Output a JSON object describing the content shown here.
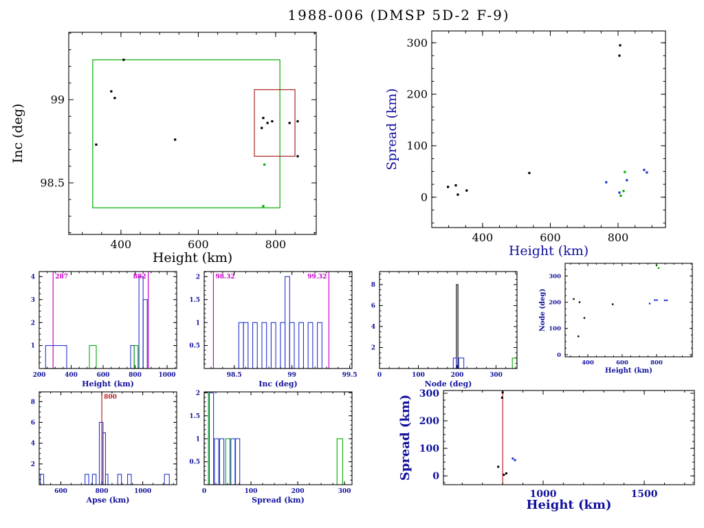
{
  "title": "1988-006 (DMSP 5D-2 F-9)",
  "colors": {
    "axis": "#000000",
    "blue": "#2233cc",
    "green": "#00aa00",
    "magenta": "#cc00cc",
    "red": "#bb2222",
    "navy": "#10109c",
    "black": "#000000"
  },
  "chart_data": [
    {
      "id": "inc-vs-height",
      "type": "scatter",
      "xlabel": "Height (km)",
      "ylabel": "Inc (deg)",
      "xlim": [
        265,
        905
      ],
      "ylim": [
        98.19,
        99.405
      ],
      "xticks": [
        {
          "v": 400,
          "l": "400"
        },
        {
          "v": 600,
          "l": "600"
        },
        {
          "v": 800,
          "l": "800"
        }
      ],
      "yticks": [
        {
          "v": 98.5,
          "l": "98.5"
        },
        {
          "v": 99,
          "l": "99"
        }
      ],
      "label_color": "#000000",
      "tick_color": "#000000",
      "rects": [
        {
          "x0": 327,
          "y0": 98.35,
          "x1": 811,
          "y1": 99.24,
          "color": "#00aa00",
          "name": "green-bound-box"
        },
        {
          "x0": 745,
          "y0": 98.66,
          "x1": 850,
          "y1": 99.06,
          "color": "#aa2222",
          "name": "red-zoom-box"
        }
      ],
      "series": [
        {
          "name": "objects-black",
          "color": "#000000",
          "points": [
            [
              407,
              99.24
            ],
            [
              375,
              99.05
            ],
            [
              384,
              99.01
            ],
            [
              336,
              98.73
            ],
            [
              540,
              98.76
            ],
            [
              768,
              98.89
            ],
            [
              779,
              98.86
            ],
            [
              764,
              98.83
            ],
            [
              791,
              98.87
            ],
            [
              836,
              98.86
            ],
            [
              857,
              98.87
            ],
            [
              857,
              98.66
            ]
          ]
        },
        {
          "name": "objects-green",
          "color": "#00aa00",
          "points": [
            [
              771,
              98.61
            ],
            [
              768,
              98.36
            ]
          ]
        }
      ]
    },
    {
      "id": "spread-vs-height",
      "type": "scatter",
      "xlabel": "Height (km)",
      "ylabel": "Spread (km)",
      "xlim": [
        250,
        940
      ],
      "ylim": [
        -59,
        323
      ],
      "xticks": [
        {
          "v": 400,
          "l": "400"
        },
        {
          "v": 600,
          "l": "600"
        },
        {
          "v": 800,
          "l": "800"
        }
      ],
      "yticks": [
        {
          "v": 0,
          "l": "0"
        },
        {
          "v": 100,
          "l": "100"
        },
        {
          "v": 200,
          "l": "200"
        },
        {
          "v": 300,
          "l": "300"
        }
      ],
      "label_color": "#10109c",
      "tick_color": "#000000",
      "series": [
        {
          "name": "objects-black",
          "color": "#000000",
          "points": [
            [
              806,
              295
            ],
            [
              804,
              275
            ],
            [
              538,
              47
            ],
            [
              298,
              20
            ],
            [
              321,
              23
            ],
            [
              327,
              5
            ],
            [
              353,
              13
            ]
          ]
        },
        {
          "name": "objects-blue",
          "color": "#2233cc",
          "points": [
            [
              765,
              29
            ],
            [
              826,
              33
            ],
            [
              877,
              53
            ],
            [
              885,
              48
            ],
            [
              804,
              9
            ]
          ]
        },
        {
          "name": "objects-green",
          "color": "#00aa00",
          "points": [
            [
              820,
              49
            ],
            [
              816,
              12
            ],
            [
              808,
              3
            ]
          ]
        }
      ]
    },
    {
      "id": "hist-height",
      "type": "bar",
      "xlabel": "Height (km)",
      "ylabel": "",
      "xlim": [
        200,
        1060
      ],
      "ylim": [
        0,
        4.22
      ],
      "xticks": [
        {
          "v": 200,
          "l": "200"
        },
        {
          "v": 400,
          "l": "400"
        },
        {
          "v": 600,
          "l": "600"
        },
        {
          "v": 800,
          "l": "800"
        },
        {
          "v": 1000,
          "l": "1000"
        }
      ],
      "yticks": [
        {
          "v": 1,
          "l": "1"
        },
        {
          "v": 2,
          "l": "2"
        },
        {
          "v": 3,
          "l": "3"
        },
        {
          "v": 4,
          "l": "4"
        }
      ],
      "label_color": "#10109c",
      "tick_color": "#10109c",
      "bins": [
        {
          "x0": 240,
          "x1": 372,
          "h": 1,
          "c": "#2233cc"
        },
        {
          "x0": 514,
          "x1": 557,
          "h": 1,
          "c": "#00aa00"
        },
        {
          "x0": 772,
          "x1": 794,
          "h": 1,
          "c": "#2233cc"
        },
        {
          "x0": 794,
          "x1": 818,
          "h": 1,
          "c": "#00aa00"
        },
        {
          "x0": 824,
          "x1": 850,
          "h": 4,
          "c": "#2233cc"
        },
        {
          "x0": 850,
          "x1": 876,
          "h": 3,
          "c": "#2233cc"
        }
      ],
      "vlines": [
        {
          "x": 287,
          "label": "287",
          "side": "right",
          "color": "#cc00cc"
        },
        {
          "x": 882,
          "label": "882",
          "side": "left",
          "color": "#cc00cc"
        }
      ]
    },
    {
      "id": "hist-inc",
      "type": "bar",
      "xlabel": "Inc (deg)",
      "ylabel": "",
      "xlim": [
        98.24,
        99.52
      ],
      "ylim": [
        0,
        2.11
      ],
      "xticks": [
        {
          "v": 98.5,
          "l": "98.5"
        },
        {
          "v": 99,
          "l": "99"
        },
        {
          "v": 99.5,
          "l": "99.5"
        }
      ],
      "yticks": [
        {
          "v": 0.5,
          "l": "0.5"
        },
        {
          "v": 1,
          "l": "1"
        },
        {
          "v": 1.5,
          "l": "1.5"
        },
        {
          "v": 2,
          "l": "2"
        }
      ],
      "label_color": "#10109c",
      "tick_color": "#10109c",
      "bins": [
        {
          "x0": 98.54,
          "x1": 98.58,
          "h": 1,
          "c": "#2233cc"
        },
        {
          "x0": 98.58,
          "x1": 98.62,
          "h": 1,
          "c": "#2233cc"
        },
        {
          "x0": 98.66,
          "x1": 98.7,
          "h": 1,
          "c": "#2233cc"
        },
        {
          "x0": 98.74,
          "x1": 98.78,
          "h": 1,
          "c": "#2233cc"
        },
        {
          "x0": 98.82,
          "x1": 98.86,
          "h": 1,
          "c": "#2233cc"
        },
        {
          "x0": 98.9,
          "x1": 98.94,
          "h": 1,
          "c": "#2233cc"
        },
        {
          "x0": 98.94,
          "x1": 98.98,
          "h": 2,
          "c": "#2233cc"
        },
        {
          "x0": 98.98,
          "x1": 99.02,
          "h": 1,
          "c": "#2233cc"
        },
        {
          "x0": 99.06,
          "x1": 99.1,
          "h": 1,
          "c": "#2233cc"
        },
        {
          "x0": 99.14,
          "x1": 99.18,
          "h": 1,
          "c": "#2233cc"
        },
        {
          "x0": 99.22,
          "x1": 99.26,
          "h": 1,
          "c": "#2233cc"
        }
      ],
      "vlines": [
        {
          "x": 98.32,
          "label": "98.32",
          "side": "right",
          "color": "#cc00cc"
        },
        {
          "x": 99.32,
          "label": "99.32",
          "side": "left",
          "color": "#cc00cc"
        }
      ]
    },
    {
      "id": "hist-node",
      "type": "bar",
      "xlabel": "Node (deg)",
      "ylabel": "",
      "xlim": [
        0,
        354
      ],
      "ylim": [
        0,
        9.24
      ],
      "xticks": [
        {
          "v": 0,
          "l": "0"
        },
        {
          "v": 100,
          "l": "100"
        },
        {
          "v": 200,
          "l": "200"
        },
        {
          "v": 300,
          "l": "300"
        }
      ],
      "yticks": [
        {
          "v": 2,
          "l": "2"
        },
        {
          "v": 4,
          "l": "4"
        },
        {
          "v": 6,
          "l": "6"
        },
        {
          "v": 8,
          "l": "8"
        }
      ],
      "label_color": "#10109c",
      "tick_color": "#10109c",
      "bins": [
        {
          "x0": 198,
          "x1": 202,
          "h": 8,
          "c": "#000000"
        },
        {
          "x0": 190,
          "x1": 198,
          "h": 1,
          "c": "#2233cc"
        },
        {
          "x0": 204,
          "x1": 217,
          "h": 1,
          "c": "#2233cc"
        },
        {
          "x0": 342,
          "x1": 354,
          "h": 1,
          "c": "#00aa00"
        }
      ],
      "vlines": []
    },
    {
      "id": "node-vs-height",
      "type": "scatter",
      "xlabel": "Height (km)",
      "ylabel": "Node (deg)",
      "xlim": [
        268,
        1008
      ],
      "ylim": [
        -8,
        348
      ],
      "xticks": [
        {
          "v": 400,
          "l": "400"
        },
        {
          "v": 600,
          "l": "600"
        },
        {
          "v": 800,
          "l": "800"
        }
      ],
      "yticks": [
        {
          "v": 0,
          "l": "0"
        },
        {
          "v": 100,
          "l": "100"
        },
        {
          "v": 200,
          "l": "200"
        },
        {
          "v": 300,
          "l": "300"
        }
      ],
      "label_color": "#10109c",
      "tick_color": "#10109c",
      "series": [
        {
          "name": "objects-black",
          "color": "#000000",
          "points": [
            [
              318,
              212
            ],
            [
              352,
              200
            ],
            [
              380,
              140
            ],
            [
              345,
              70
            ],
            [
              545,
              192
            ]
          ]
        },
        {
          "name": "objects-blue",
          "color": "#2233cc",
          "points": [
            [
              760,
              195
            ],
            [
              790,
              208
            ],
            [
              802,
              208
            ],
            [
              848,
              207
            ],
            [
              860,
              207
            ]
          ]
        },
        {
          "name": "objects-green",
          "color": "#00aa00",
          "points": [
            [
              800,
              340
            ],
            [
              812,
              330
            ]
          ]
        }
      ]
    },
    {
      "id": "hist-apse",
      "type": "bar",
      "xlabel": "Apse (km)",
      "ylabel": "",
      "xlim": [
        494,
        1166
      ],
      "ylim": [
        0,
        8.94
      ],
      "xticks": [
        {
          "v": 600,
          "l": "600"
        },
        {
          "v": 800,
          "l": "800"
        },
        {
          "v": 1000,
          "l": "1000"
        }
      ],
      "yticks": [
        {
          "v": 2,
          "l": "2"
        },
        {
          "v": 4,
          "l": "4"
        },
        {
          "v": 6,
          "l": "6"
        },
        {
          "v": 8,
          "l": "8"
        }
      ],
      "label_color": "#10109c",
      "tick_color": "#10109c",
      "bins": [
        {
          "x0": 500,
          "x1": 516,
          "h": 1,
          "c": "#2233cc"
        },
        {
          "x0": 718,
          "x1": 736,
          "h": 1,
          "c": "#2233cc"
        },
        {
          "x0": 754,
          "x1": 772,
          "h": 1,
          "c": "#2233cc"
        },
        {
          "x0": 788,
          "x1": 806,
          "h": 6,
          "c": "#2233cc"
        },
        {
          "x0": 806,
          "x1": 818,
          "h": 5,
          "c": "#2233cc"
        },
        {
          "x0": 818,
          "x1": 830,
          "h": 1,
          "c": "#2233cc"
        },
        {
          "x0": 878,
          "x1": 896,
          "h": 1,
          "c": "#2233cc"
        },
        {
          "x0": 926,
          "x1": 944,
          "h": 1,
          "c": "#2233cc"
        },
        {
          "x0": 1106,
          "x1": 1130,
          "h": 1,
          "c": "#2233cc"
        }
      ],
      "vlines": [
        {
          "x": 800,
          "label": "800",
          "side": "right",
          "color": "#bb2222"
        }
      ]
    },
    {
      "id": "hist-spread",
      "type": "bar",
      "xlabel": "Spread (km)",
      "ylabel": "",
      "xlim": [
        0,
        316
      ],
      "ylim": [
        0,
        2.02
      ],
      "xticks": [
        {
          "v": 0,
          "l": "0"
        },
        {
          "v": 100,
          "l": "100"
        },
        {
          "v": 200,
          "l": "200"
        },
        {
          "v": 300,
          "l": "300"
        }
      ],
      "yticks": [
        {
          "v": 0.5,
          "l": "0.5"
        },
        {
          "v": 1,
          "l": "1"
        },
        {
          "v": 1.5,
          "l": "1.5"
        },
        {
          "v": 2,
          "l": "2"
        }
      ],
      "label_color": "#10109c",
      "tick_color": "#10109c",
      "bins": [
        {
          "x0": 0,
          "x1": 9,
          "h": 2,
          "c": "#00aa00"
        },
        {
          "x0": 11,
          "x1": 20,
          "h": 2,
          "c": "#2233cc"
        },
        {
          "x0": 22,
          "x1": 31,
          "h": 1,
          "c": "#2233cc"
        },
        {
          "x0": 33,
          "x1": 42,
          "h": 1,
          "c": "#2233cc"
        },
        {
          "x0": 46,
          "x1": 55,
          "h": 1,
          "c": "#00aa00"
        },
        {
          "x0": 57,
          "x1": 66,
          "h": 1,
          "c": "#2233cc"
        },
        {
          "x0": 67,
          "x1": 76,
          "h": 1,
          "c": "#2233cc"
        },
        {
          "x0": 284,
          "x1": 296,
          "h": 1,
          "c": "#00aa00"
        }
      ],
      "vlines": []
    },
    {
      "id": "spread-vs-height-zoom",
      "type": "scatter",
      "xlabel": "Height (km)",
      "ylabel": "Spread (km)",
      "xlim": [
        507,
        1748
      ],
      "ylim": [
        -32,
        310
      ],
      "xticks": [
        {
          "v": 1000,
          "l": "1000"
        },
        {
          "v": 1500,
          "l": "1500"
        }
      ],
      "yticks": [
        {
          "v": 0,
          "l": "0"
        },
        {
          "v": 100,
          "l": "100"
        },
        {
          "v": 200,
          "l": "200"
        },
        {
          "v": 300,
          "l": "300"
        }
      ],
      "label_color": "#10109c",
      "tick_color": "#10109c",
      "vlines": [
        {
          "x": 800,
          "label": "",
          "side": "right",
          "color": "#bb2222"
        }
      ],
      "series": [
        {
          "name": "objects-black",
          "color": "#000000",
          "points": [
            [
              800,
              303
            ],
            [
              797,
              284
            ],
            [
              778,
              33
            ],
            [
              806,
              4
            ],
            [
              818,
              9
            ]
          ]
        },
        {
          "name": "objects-blue",
          "color": "#2233cc",
          "points": [
            [
              850,
              63
            ],
            [
              861,
              57
            ]
          ]
        }
      ]
    }
  ]
}
